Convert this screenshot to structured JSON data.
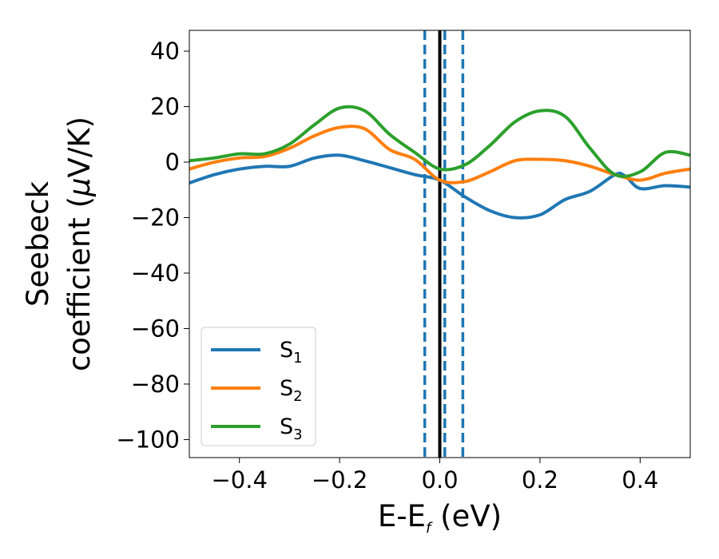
{
  "chart_data": {
    "type": "line",
    "xlabel": {
      "main": "E-E",
      "sub": "f",
      "unit": " (eV)"
    },
    "ylabel": {
      "line1": "Seebeck",
      "line2_prefix": "coefficient  (",
      "mu": "μ",
      "line2_suffix": "V/K)"
    },
    "xlim": [
      -0.5,
      0.5
    ],
    "ylim": [
      -106.5,
      47.5
    ],
    "xticks": [
      -0.4,
      -0.2,
      0.0,
      0.2,
      0.4
    ],
    "xtick_labels": [
      "−0.4",
      "−0.2",
      "0.0",
      "0.2",
      "0.4"
    ],
    "yticks": [
      40,
      20,
      0,
      -20,
      -40,
      -60,
      -80,
      -100
    ],
    "ytick_labels": [
      "40",
      "20",
      "0",
      "−20",
      "−40",
      "−60",
      "−80",
      "−100"
    ],
    "legend": {
      "position": "lower-left"
    },
    "vlines": [
      {
        "x": 0.0,
        "style": "solid",
        "color": "#000000"
      },
      {
        "x": -0.03,
        "style": "dashed",
        "color": "#1f77b4"
      },
      {
        "x": 0.01,
        "style": "dashed",
        "color": "#1f77b4"
      },
      {
        "x": 0.046,
        "style": "dashed",
        "color": "#1f77b4"
      }
    ],
    "series": [
      {
        "name": "S",
        "sub": "1",
        "color": "#1f77b4",
        "x": [
          -0.5,
          -0.45,
          -0.4,
          -0.35,
          -0.3,
          -0.25,
          -0.2,
          -0.15,
          -0.1,
          -0.05,
          0.0,
          0.05,
          0.1,
          0.15,
          0.2,
          0.25,
          0.3,
          0.35,
          0.37,
          0.4,
          0.45,
          0.5
        ],
        "y": [
          -7.5,
          -4.5,
          -2.5,
          -1.5,
          -1.5,
          1.5,
          2.5,
          0.5,
          -2.0,
          -4.5,
          -6.5,
          -12.5,
          -17.5,
          -20.0,
          -19.0,
          -13.5,
          -10.5,
          -4.5,
          -5.0,
          -9.5,
          -8.5,
          -9.0
        ]
      },
      {
        "name": "S",
        "sub": "2",
        "color": "#ff7f0e",
        "x": [
          -0.5,
          -0.45,
          -0.4,
          -0.35,
          -0.3,
          -0.25,
          -0.2,
          -0.15,
          -0.1,
          -0.05,
          0.0,
          0.05,
          0.1,
          0.15,
          0.2,
          0.25,
          0.3,
          0.35,
          0.4,
          0.45,
          0.5
        ],
        "y": [
          -2.5,
          0.0,
          1.5,
          2.0,
          5.0,
          9.5,
          12.5,
          12.0,
          4.5,
          1.0,
          -6.5,
          -7.0,
          -3.5,
          0.5,
          1.0,
          0.5,
          -1.5,
          -4.5,
          -6.5,
          -4.0,
          -2.5
        ]
      },
      {
        "name": "S",
        "sub": "3",
        "color": "#2ca02c",
        "x": [
          -0.5,
          -0.45,
          -0.4,
          -0.35,
          -0.3,
          -0.25,
          -0.2,
          -0.15,
          -0.1,
          -0.05,
          0.0,
          0.05,
          0.1,
          0.15,
          0.2,
          0.25,
          0.3,
          0.35,
          0.4,
          0.45,
          0.5
        ],
        "y": [
          0.5,
          1.5,
          3.0,
          3.0,
          6.5,
          13.5,
          19.5,
          18.5,
          10.0,
          3.5,
          -2.5,
          -1.0,
          6.0,
          14.5,
          18.5,
          16.5,
          5.0,
          -4.5,
          -3.5,
          3.5,
          2.5
        ]
      }
    ]
  }
}
